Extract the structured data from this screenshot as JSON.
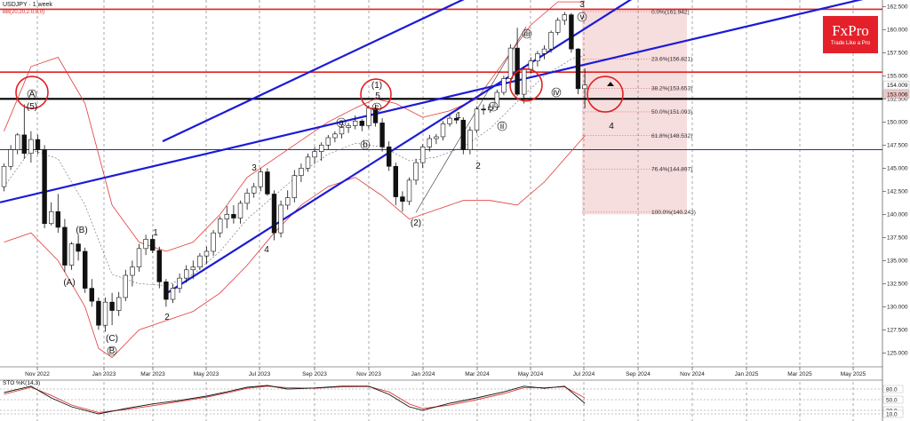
{
  "header": {
    "symbol_title": "USDJPY · 1 week",
    "bb_label": "BB(20,20,2.0,0,0)"
  },
  "logo": {
    "brand": "FxPro",
    "tagline": "Trade Like a Pro"
  },
  "oscillator": {
    "label": "STO %K(14,3)",
    "levels": [
      "80.0",
      "50.0",
      "20.0",
      "10.0"
    ]
  },
  "chart_data": {
    "type": "candlestick",
    "title": "USDJPY · 1 week",
    "ylim": [
      123.5,
      163.2
    ],
    "y_ticks": [
      "162.500",
      "160.000",
      "157.500",
      "155.000",
      "152.500",
      "150.000",
      "147.500",
      "145.000",
      "142.500",
      "140.000",
      "137.500",
      "135.000",
      "132.500",
      "130.000",
      "127.500",
      "125.000"
    ],
    "x_ticks": [
      "Nov 2022",
      "Jan 2023",
      "Mar 2023",
      "May 2023",
      "Jul 2023",
      "Sep 2023",
      "Nov 2023",
      "Jan 2024",
      "Mar 2024",
      "May 2024",
      "Jul 2024",
      "Sep 2024",
      "Nov 2024",
      "Jan 2025",
      "Mar 2025",
      "May 2025"
    ],
    "price_tags": [
      {
        "value": "154.009",
        "color": "#ffffff"
      },
      {
        "value": "153.006",
        "color": "#f2c4c4"
      }
    ],
    "horizontal_levels": [
      {
        "value": 162.2,
        "color": "#e02020"
      },
      {
        "value": 155.4,
        "color": "#e02020"
      },
      {
        "value": 152.5,
        "color": "#000000"
      },
      {
        "value": 147.0,
        "color": "#1a3a8a"
      }
    ],
    "fibonacci": [
      {
        "label": "0.0%(161.942)",
        "value": 161.942
      },
      {
        "label": "23.6%(156.821)",
        "value": 156.821
      },
      {
        "label": "38.2%(153.653)",
        "value": 153.653
      },
      {
        "label": "50.0%(151.093)",
        "value": 151.093
      },
      {
        "label": "61.8%(148.532)",
        "value": 148.532
      },
      {
        "label": "76.4%(144.897)",
        "value": 144.897
      },
      {
        "label": "100.0%(140.243)",
        "value": 140.243
      }
    ],
    "channel_lines": [
      {
        "from": [
          "Mar 2023",
          131.3
        ],
        "to": [
          "Jul 2024",
          163.5
        ]
      },
      {
        "from": [
          "Aug 2022",
          141.3
        ],
        "to": [
          "May 2025",
          164.5
        ]
      }
    ],
    "wave_labels": [
      "A",
      "(5)",
      "(B)",
      "(A)",
      "(C)",
      "B",
      "1",
      "2",
      "3",
      "4",
      "(1)",
      "5",
      "a",
      "b",
      "c",
      "1",
      "2",
      "(2)",
      "i",
      "ii",
      "iii",
      "iv",
      "v",
      "3",
      "4"
    ],
    "circles": [
      "(5) top Oct 2022",
      "5 top Nov 2023",
      "iii area May 2024",
      "4 area Aug 2024"
    ],
    "candles": [
      [
        0,
        143.0,
        145.5,
        142.5,
        145.2
      ],
      [
        1,
        145.2,
        147.5,
        144.8,
        147.0
      ],
      [
        2,
        147.0,
        148.8,
        146.5,
        148.6
      ],
      [
        3,
        148.6,
        151.9,
        146.0,
        146.6
      ],
      [
        4,
        146.6,
        149.0,
        145.6,
        148.1
      ],
      [
        5,
        148.1,
        148.6,
        146.5,
        147.0
      ],
      [
        6,
        147.0,
        147.5,
        138.5,
        139.0
      ],
      [
        7,
        139.0,
        141.3,
        138.8,
        140.3
      ],
      [
        8,
        140.3,
        142.2,
        138.0,
        138.6
      ],
      [
        9,
        138.6,
        139.5,
        133.8,
        134.5
      ],
      [
        10,
        134.5,
        137.0,
        134.0,
        136.8
      ],
      [
        11,
        136.8,
        137.8,
        135.0,
        136.0
      ],
      [
        12,
        136.0,
        136.4,
        131.5,
        132.0
      ],
      [
        13,
        132.0,
        133.0,
        130.0,
        130.6
      ],
      [
        14,
        130.6,
        131.0,
        127.5,
        128.0
      ],
      [
        15,
        128.0,
        131.0,
        127.3,
        130.5
      ],
      [
        16,
        130.5,
        131.5,
        128.0,
        129.6
      ],
      [
        17,
        129.6,
        131.6,
        129.0,
        131.0
      ],
      [
        18,
        131.0,
        134.0,
        130.6,
        133.4
      ],
      [
        19,
        133.4,
        135.0,
        132.2,
        134.3
      ],
      [
        20,
        134.3,
        136.8,
        133.8,
        136.3
      ],
      [
        21,
        136.3,
        137.8,
        135.6,
        137.3
      ],
      [
        22,
        137.3,
        137.8,
        135.8,
        136.1
      ],
      [
        23,
        136.1,
        136.5,
        132.0,
        132.7
      ],
      [
        24,
        132.7,
        133.0,
        130.0,
        130.8
      ],
      [
        25,
        130.8,
        132.5,
        130.4,
        132.0
      ],
      [
        26,
        132.0,
        133.6,
        131.5,
        133.1
      ],
      [
        27,
        133.1,
        134.5,
        132.6,
        134.0
      ],
      [
        28,
        134.0,
        135.0,
        133.0,
        134.3
      ],
      [
        29,
        134.3,
        135.8,
        134.0,
        135.5
      ],
      [
        30,
        135.5,
        136.5,
        134.6,
        136.0
      ],
      [
        31,
        136.0,
        138.3,
        135.5,
        138.0
      ],
      [
        32,
        138.0,
        139.8,
        137.5,
        139.5
      ],
      [
        33,
        139.5,
        140.9,
        138.5,
        140.0
      ],
      [
        34,
        140.0,
        141.0,
        139.0,
        139.6
      ],
      [
        35,
        139.6,
        141.5,
        139.0,
        141.2
      ],
      [
        36,
        141.2,
        142.8,
        140.5,
        142.3
      ],
      [
        37,
        142.3,
        143.4,
        141.8,
        143.0
      ],
      [
        38,
        143.0,
        145.0,
        142.5,
        144.6
      ],
      [
        39,
        144.6,
        145.0,
        142.0,
        142.2
      ],
      [
        40,
        142.2,
        142.6,
        137.2,
        138.0
      ],
      [
        41,
        138.0,
        141.5,
        137.5,
        141.0
      ],
      [
        42,
        141.0,
        142.6,
        140.5,
        141.8
      ],
      [
        43,
        141.8,
        144.8,
        141.3,
        144.2
      ],
      [
        44,
        144.2,
        145.5,
        143.5,
        145.0
      ],
      [
        45,
        145.0,
        146.6,
        144.6,
        146.2
      ],
      [
        46,
        146.2,
        147.3,
        145.5,
        146.8
      ],
      [
        47,
        146.8,
        147.8,
        145.8,
        147.5
      ],
      [
        48,
        147.5,
        148.6,
        147.0,
        148.3
      ],
      [
        49,
        148.3,
        149.0,
        147.8,
        148.7
      ],
      [
        50,
        148.7,
        149.7,
        148.2,
        149.4
      ],
      [
        51,
        149.4,
        149.9,
        148.8,
        149.6
      ],
      [
        52,
        149.6,
        150.7,
        149.2,
        150.1
      ],
      [
        53,
        150.1,
        150.3,
        149.0,
        149.6
      ],
      [
        54,
        149.6,
        151.8,
        149.3,
        151.5
      ],
      [
        55,
        151.5,
        151.9,
        149.5,
        149.9
      ],
      [
        56,
        149.9,
        150.4,
        146.8,
        147.3
      ],
      [
        57,
        147.3,
        147.9,
        144.7,
        145.2
      ],
      [
        58,
        145.2,
        145.6,
        141.0,
        141.9
      ],
      [
        59,
        141.9,
        142.5,
        140.3,
        141.4
      ],
      [
        60,
        141.4,
        144.0,
        141.0,
        143.7
      ],
      [
        61,
        143.7,
        146.0,
        143.2,
        145.6
      ],
      [
        62,
        145.6,
        147.6,
        145.0,
        147.3
      ],
      [
        63,
        147.3,
        148.6,
        146.8,
        148.2
      ],
      [
        64,
        148.2,
        148.7,
        147.6,
        148.4
      ],
      [
        65,
        148.4,
        150.1,
        148.0,
        149.8
      ],
      [
        66,
        149.8,
        150.8,
        149.5,
        150.4
      ],
      [
        67,
        150.4,
        150.9,
        149.8,
        150.2
      ],
      [
        68,
        150.2,
        150.5,
        146.5,
        147.0
      ],
      [
        69,
        147.0,
        149.5,
        146.5,
        149.1
      ],
      [
        70,
        149.1,
        151.7,
        148.8,
        151.4
      ],
      [
        71,
        151.4,
        151.9,
        150.8,
        151.3
      ],
      [
        72,
        151.3,
        151.9,
        151.0,
        151.6
      ],
      [
        73,
        151.6,
        153.5,
        151.3,
        153.2
      ],
      [
        74,
        153.2,
        155.0,
        152.9,
        154.7
      ],
      [
        75,
        154.7,
        158.4,
        154.4,
        158.0
      ],
      [
        76,
        158.0,
        160.2,
        152.8,
        153.0
      ],
      [
        77,
        153.0,
        156.0,
        152.0,
        155.7
      ],
      [
        78,
        155.7,
        157.0,
        155.2,
        156.6
      ],
      [
        79,
        156.6,
        157.7,
        156.0,
        157.4
      ],
      [
        80,
        157.4,
        158.3,
        156.8,
        157.9
      ],
      [
        81,
        157.9,
        159.9,
        157.5,
        159.7
      ],
      [
        82,
        159.7,
        161.3,
        159.4,
        161.0
      ],
      [
        83,
        161.0,
        161.9,
        160.5,
        161.6
      ],
      [
        84,
        161.6,
        161.8,
        157.5,
        157.9
      ],
      [
        85,
        157.9,
        158.0,
        153.0,
        153.6
      ],
      [
        86,
        153.6,
        155.8,
        151.5,
        154.0
      ]
    ],
    "bollinger_upper": [
      [
        0,
        149
      ],
      [
        4,
        156
      ],
      [
        8,
        157
      ],
      [
        12,
        152
      ],
      [
        16,
        141
      ],
      [
        20,
        137
      ],
      [
        24,
        136
      ],
      [
        28,
        137
      ],
      [
        32,
        140
      ],
      [
        36,
        144
      ],
      [
        40,
        146
      ],
      [
        44,
        148
      ],
      [
        48,
        150
      ],
      [
        52,
        151.5
      ],
      [
        55,
        152.5
      ],
      [
        58,
        152
      ],
      [
        62,
        150.5
      ],
      [
        66,
        151.2
      ],
      [
        70,
        152.5
      ],
      [
        74,
        156.5
      ],
      [
        78,
        160.5
      ],
      [
        82,
        163
      ],
      [
        86,
        163
      ]
    ],
    "bollinger_lower": [
      [
        0,
        137
      ],
      [
        4,
        138
      ],
      [
        8,
        135
      ],
      [
        12,
        130
      ],
      [
        14,
        125.5
      ],
      [
        16,
        124.5
      ],
      [
        20,
        127.5
      ],
      [
        24,
        128.5
      ],
      [
        28,
        129.5
      ],
      [
        32,
        131.5
      ],
      [
        36,
        134.5
      ],
      [
        40,
        138
      ],
      [
        44,
        141
      ],
      [
        48,
        143
      ],
      [
        52,
        144
      ],
      [
        56,
        142
      ],
      [
        60,
        139.5
      ],
      [
        64,
        140.5
      ],
      [
        68,
        141.5
      ],
      [
        72,
        141.5
      ],
      [
        76,
        141
      ],
      [
        80,
        143.5
      ],
      [
        83,
        146
      ],
      [
        86,
        148.5
      ]
    ],
    "bollinger_middle": [
      [
        0,
        143
      ],
      [
        4,
        147
      ],
      [
        8,
        146
      ],
      [
        12,
        141
      ],
      [
        16,
        133.5
      ],
      [
        20,
        132.5
      ],
      [
        24,
        132.3
      ],
      [
        28,
        133.5
      ],
      [
        32,
        136
      ],
      [
        36,
        139.5
      ],
      [
        40,
        142
      ],
      [
        44,
        144.5
      ],
      [
        48,
        146.5
      ],
      [
        52,
        147.7
      ],
      [
        56,
        147.3
      ],
      [
        60,
        145.8
      ],
      [
        64,
        146.2
      ],
      [
        68,
        147.3
      ],
      [
        72,
        149.3
      ],
      [
        76,
        152.2
      ],
      [
        80,
        155
      ],
      [
        84,
        156.8
      ],
      [
        86,
        157.2
      ]
    ],
    "stochastic_k": [
      [
        0,
        70
      ],
      [
        4,
        88
      ],
      [
        7,
        55
      ],
      [
        10,
        30
      ],
      [
        14,
        10
      ],
      [
        18,
        25
      ],
      [
        22,
        38
      ],
      [
        26,
        48
      ],
      [
        30,
        60
      ],
      [
        33,
        72
      ],
      [
        36,
        85
      ],
      [
        39,
        90
      ],
      [
        42,
        80
      ],
      [
        46,
        83
      ],
      [
        50,
        88
      ],
      [
        54,
        88
      ],
      [
        57,
        65
      ],
      [
        60,
        30
      ],
      [
        62,
        20
      ],
      [
        66,
        40
      ],
      [
        70,
        55
      ],
      [
        74,
        72
      ],
      [
        77,
        88
      ],
      [
        80,
        82
      ],
      [
        83,
        88
      ],
      [
        86,
        40
      ]
    ],
    "stochastic_d": [
      [
        0,
        65
      ],
      [
        4,
        85
      ],
      [
        7,
        62
      ],
      [
        10,
        35
      ],
      [
        14,
        14
      ],
      [
        18,
        22
      ],
      [
        22,
        33
      ],
      [
        26,
        45
      ],
      [
        30,
        57
      ],
      [
        33,
        69
      ],
      [
        36,
        82
      ],
      [
        39,
        88
      ],
      [
        42,
        84
      ],
      [
        46,
        82
      ],
      [
        50,
        86
      ],
      [
        54,
        87
      ],
      [
        57,
        72
      ],
      [
        60,
        38
      ],
      [
        62,
        25
      ],
      [
        66,
        35
      ],
      [
        70,
        50
      ],
      [
        74,
        67
      ],
      [
        77,
        84
      ],
      [
        80,
        84
      ],
      [
        83,
        86
      ],
      [
        86,
        55
      ]
    ]
  }
}
